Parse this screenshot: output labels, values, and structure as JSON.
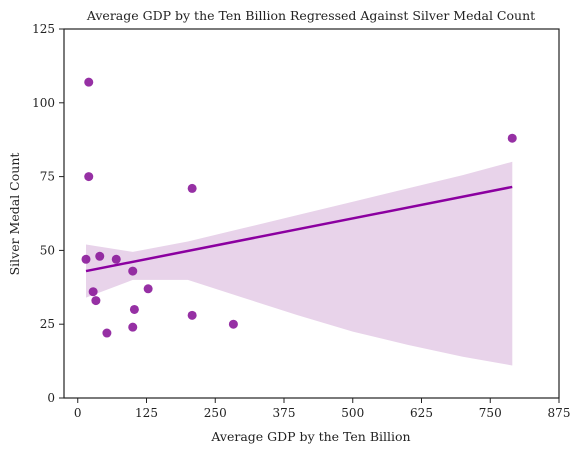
{
  "chart_data": {
    "type": "scatter",
    "title": "Average GDP by the Ten Billion Regressed Against Silver Medal Count",
    "xlabel": "Average GDP by the Ten Billion",
    "ylabel": "Silver Medal Count",
    "xlim": [
      -25,
      875
    ],
    "ylim": [
      0,
      125
    ],
    "xticks": [
      0,
      125,
      250,
      375,
      500,
      625,
      750,
      875
    ],
    "yticks": [
      0,
      25,
      50,
      75,
      100,
      125
    ],
    "grid": false,
    "colors": {
      "points": "#8b1a9a",
      "line": "#8b00a0",
      "band": "#e8d3ea"
    },
    "points": [
      {
        "x": 20,
        "y": 107
      },
      {
        "x": 20,
        "y": 75
      },
      {
        "x": 15,
        "y": 47
      },
      {
        "x": 40,
        "y": 48
      },
      {
        "x": 70,
        "y": 47
      },
      {
        "x": 100,
        "y": 43
      },
      {
        "x": 28,
        "y": 36
      },
      {
        "x": 33,
        "y": 33
      },
      {
        "x": 128,
        "y": 37
      },
      {
        "x": 103,
        "y": 30
      },
      {
        "x": 53,
        "y": 22
      },
      {
        "x": 100,
        "y": 24
      },
      {
        "x": 208,
        "y": 71
      },
      {
        "x": 208,
        "y": 28
      },
      {
        "x": 283,
        "y": 25
      },
      {
        "x": 790,
        "y": 88
      }
    ],
    "regression": {
      "x": [
        15,
        790
      ],
      "y": [
        43,
        71.5
      ]
    },
    "confidence_band": {
      "x": [
        15,
        100,
        200,
        300,
        400,
        500,
        600,
        700,
        790
      ],
      "upper": [
        52,
        49.5,
        53,
        57.5,
        62,
        66.5,
        71,
        75.5,
        80
      ],
      "lower": [
        34,
        40,
        40,
        34,
        28,
        22.5,
        18,
        14,
        11
      ]
    }
  }
}
